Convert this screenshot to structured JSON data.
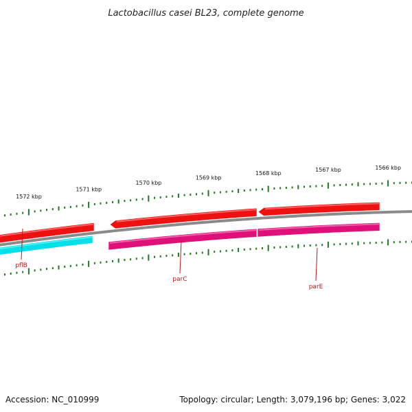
{
  "title": "Lactobacillus casei BL23, complete genome",
  "footer": {
    "accession": "Accession: NC_010999",
    "summary": "Topology: circular; Length: 3,079,196 bp; Genes: 3,022"
  },
  "colors": {
    "backbone": "#8a8a8a",
    "reverse_cds": "#ee1111",
    "forward_cds": "#00e0e8",
    "reverse_gene": "#e0107a",
    "tick": "#1f7a1f",
    "label_line": "#cc1111"
  },
  "scale": {
    "unit": "kbp",
    "labels": [
      {
        "kbp": 1572,
        "text": "1572 kbp"
      },
      {
        "kbp": 1571,
        "text": "1571 kbp"
      },
      {
        "kbp": 1570,
        "text": "1570 kbp"
      },
      {
        "kbp": 1569,
        "text": "1569 kbp"
      },
      {
        "kbp": 1568,
        "text": "1568 kbp"
      },
      {
        "kbp": 1567,
        "text": "1567 kbp"
      },
      {
        "kbp": 1566,
        "text": "1566 kbp"
      }
    ]
  },
  "genes": [
    {
      "name": "pflB",
      "strand": "+"
    },
    {
      "name": "parC",
      "strand": "-"
    },
    {
      "name": "parE",
      "strand": "-"
    }
  ]
}
